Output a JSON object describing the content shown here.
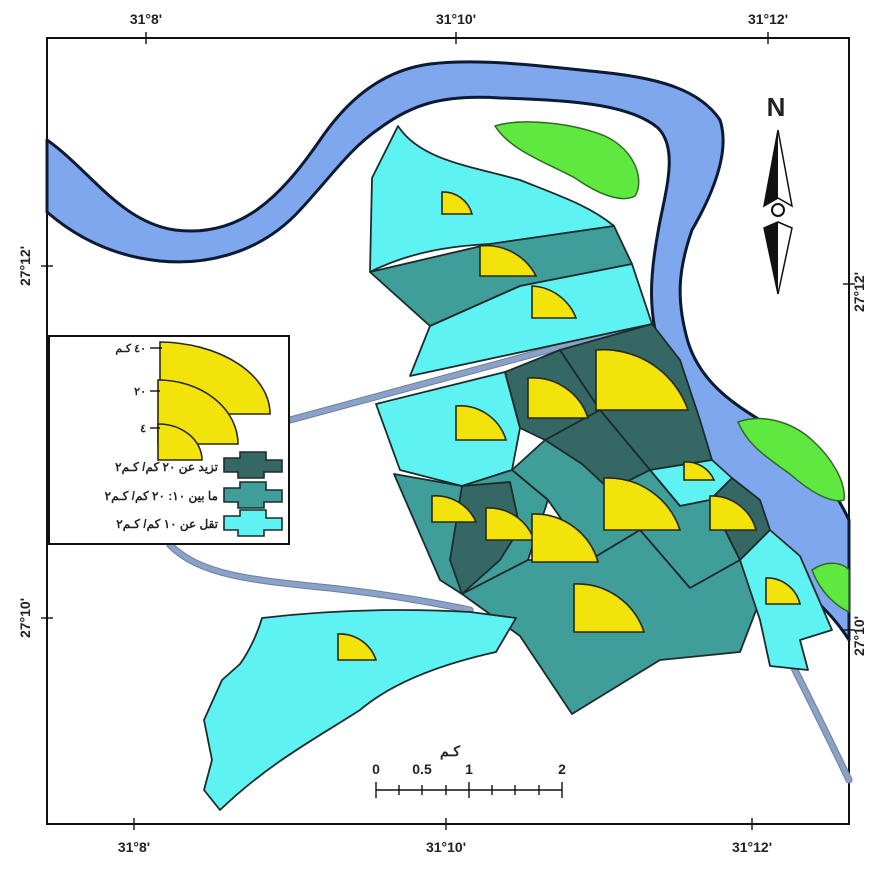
{
  "map": {
    "colors": {
      "river": "#7ea7ee",
      "island": "#5fe840",
      "low_density": "#5ff2f2",
      "mid_density": "#3f9e9a",
      "high_density": "#356765",
      "symbol": "#f2e40a",
      "road": "#8aa2c8"
    },
    "coords": {
      "top_lon": [
        "31°8'",
        "31°10'",
        "31°12'"
      ],
      "bottom_lon": [
        "31°8'",
        "31°10'",
        "31°12'"
      ],
      "left_lat": [
        "27°12'",
        "27°10'"
      ],
      "right_lat": [
        "27°12'",
        "27°10'"
      ]
    },
    "north_label": "N",
    "legend": {
      "size_labels": [
        "٤٠ كـم",
        "٢٠",
        "٤"
      ],
      "classes": [
        {
          "label": "تزيد عن ٢٠ كم/ كـم٢",
          "color": "#356765"
        },
        {
          "label": "ما بين ١٠: ٢٠ كم/ كـم٢",
          "color": "#3f9e9a"
        },
        {
          "label": "تقل عن ١٠ كم/ كـم٢",
          "color": "#5ff2f2"
        }
      ]
    },
    "scale": {
      "title": "كـم",
      "labels": [
        "0",
        "0.5",
        "1",
        "2"
      ]
    }
  }
}
